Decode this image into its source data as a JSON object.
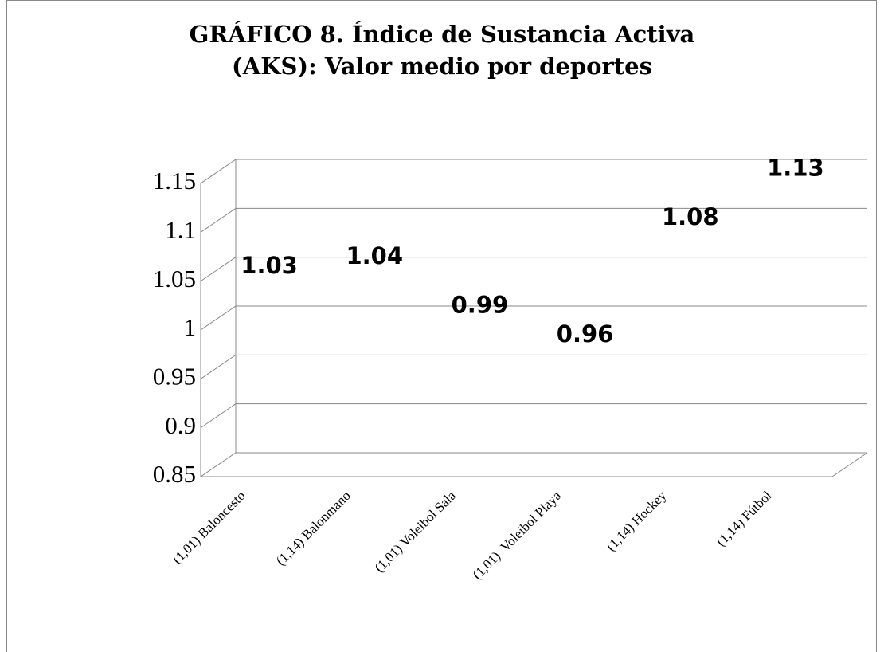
{
  "chart_data": {
    "type": "bar",
    "title": "GRÁFICO 8. Índice de Sustancia Activa",
    "subtitle": "(AKS): Valor medio por deportes",
    "categories": [
      "(1,01) Baloncesto",
      "(1,14) Balonmano",
      "(1,01) Voleibol Sala",
      "(1,01)  Voleibol Playa",
      "(1,14) Hockey",
      "(1,14) Fútbol"
    ],
    "values": [
      1.03,
      1.04,
      0.99,
      0.96,
      1.08,
      1.13
    ],
    "ylim": [
      0.85,
      1.15
    ],
    "yticks": [
      0.85,
      0.9,
      0.95,
      1,
      1.05,
      1.1,
      1.15
    ],
    "grid": true
  }
}
